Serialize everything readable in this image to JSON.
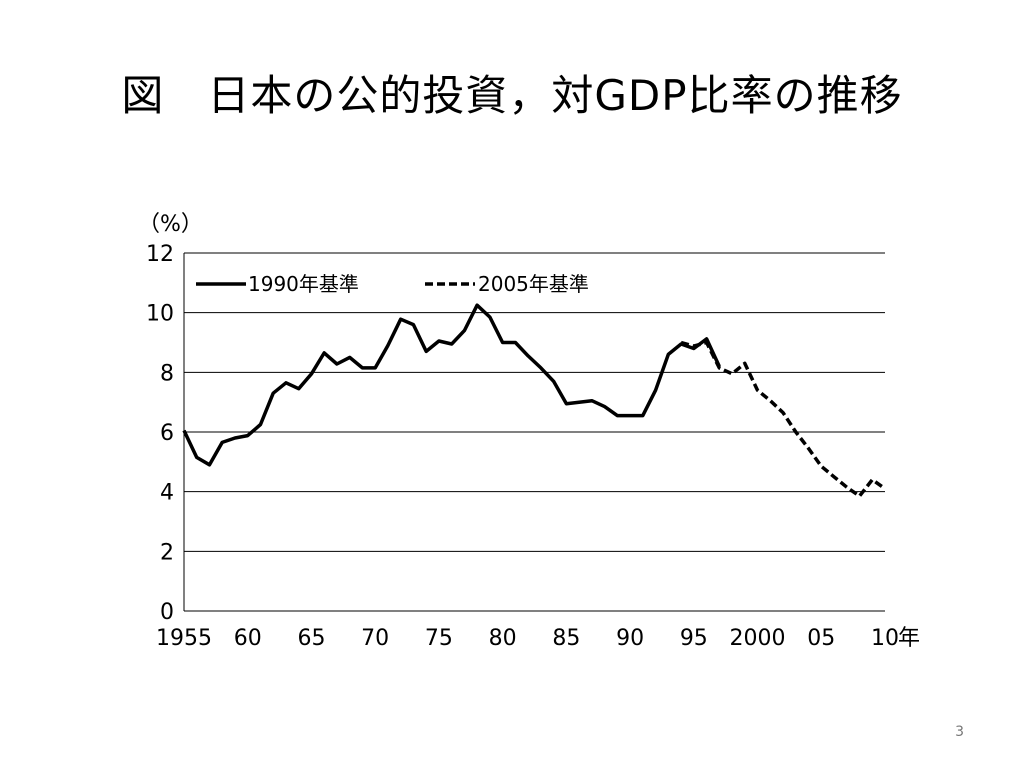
{
  "slide": {
    "title": "図　日本の公的投資，対GDP比率の推移",
    "page_number": "3"
  },
  "chart_data": {
    "type": "line",
    "title": "図　日本の公的投資，対GDP比率の推移",
    "ylabel": "（%）",
    "xlabel": "年",
    "ylim": [
      0,
      12
    ],
    "xlim": [
      1955,
      2010
    ],
    "yticks": [
      0,
      2,
      4,
      6,
      8,
      10,
      12
    ],
    "xticks": [
      {
        "value": 1955,
        "label": "1955"
      },
      {
        "value": 1960,
        "label": "60"
      },
      {
        "value": 1965,
        "label": "65"
      },
      {
        "value": 1970,
        "label": "70"
      },
      {
        "value": 1975,
        "label": "75"
      },
      {
        "value": 1980,
        "label": "80"
      },
      {
        "value": 1985,
        "label": "85"
      },
      {
        "value": 1990,
        "label": "90"
      },
      {
        "value": 1995,
        "label": "95"
      },
      {
        "value": 2000,
        "label": "2000"
      },
      {
        "value": 2005,
        "label": "05"
      },
      {
        "value": 2010,
        "label": "10"
      }
    ],
    "grid": "horizontal",
    "legend_position": "top",
    "series": [
      {
        "name": "1990年基準",
        "style": "solid",
        "color": "#000000",
        "x": [
          1955,
          1956,
          1957,
          1958,
          1959,
          1960,
          1961,
          1962,
          1963,
          1964,
          1965,
          1966,
          1967,
          1968,
          1969,
          1970,
          1971,
          1972,
          1973,
          1974,
          1975,
          1976,
          1977,
          1978,
          1979,
          1980,
          1981,
          1982,
          1983,
          1984,
          1985,
          1986,
          1987,
          1988,
          1989,
          1990,
          1991,
          1992,
          1993,
          1994,
          1995,
          1996,
          1997
        ],
        "y": [
          6.05,
          5.15,
          4.9,
          5.65,
          5.8,
          5.88,
          6.25,
          7.3,
          7.65,
          7.45,
          7.95,
          8.65,
          8.28,
          8.5,
          8.15,
          8.15,
          8.9,
          9.78,
          9.6,
          8.7,
          9.05,
          8.95,
          9.4,
          10.25,
          9.85,
          9.0,
          9.0,
          8.55,
          8.15,
          7.7,
          6.95,
          7.0,
          7.05,
          6.85,
          6.55,
          6.55,
          6.55,
          7.4,
          8.6,
          8.95,
          8.8,
          9.12,
          8.2
        ]
      },
      {
        "name": "2005年基準",
        "style": "dashed",
        "color": "#000000",
        "x": [
          1994,
          1995,
          1996,
          1997,
          1998,
          1999,
          2000,
          2001,
          2002,
          2003,
          2004,
          2005,
          2006,
          2007,
          2008,
          2009,
          2010
        ],
        "y": [
          9.0,
          8.88,
          9.0,
          8.15,
          7.95,
          8.3,
          7.4,
          7.05,
          6.65,
          6.0,
          5.45,
          4.85,
          4.5,
          4.15,
          3.85,
          4.4,
          4.1
        ]
      }
    ]
  }
}
